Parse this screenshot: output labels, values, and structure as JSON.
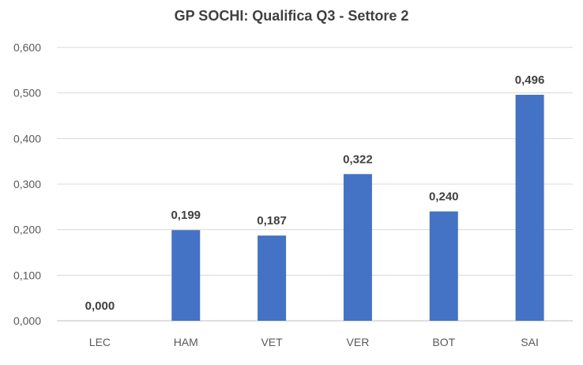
{
  "chart_data": {
    "type": "bar",
    "title": "GP SOCHI: Qualifica Q3 - Settore 2",
    "categories": [
      "LEC",
      "HAM",
      "VET",
      "VER",
      "BOT",
      "SAI"
    ],
    "values": [
      0.0,
      0.199,
      0.187,
      0.322,
      0.24,
      0.496
    ],
    "value_labels": [
      "0,000",
      "0,199",
      "0,187",
      "0,322",
      "0,240",
      "0,496"
    ],
    "y_ticks": [
      "0,000",
      "0,100",
      "0,200",
      "0,300",
      "0,400",
      "0,500",
      "0,600"
    ],
    "ylim": [
      0,
      0.6
    ],
    "xlabel": "",
    "ylabel": "",
    "grid": true,
    "legend": "none",
    "bar_color": "#4472C4",
    "grid_color": "#D9D9D9",
    "axis_color": "#BFBFBF"
  }
}
